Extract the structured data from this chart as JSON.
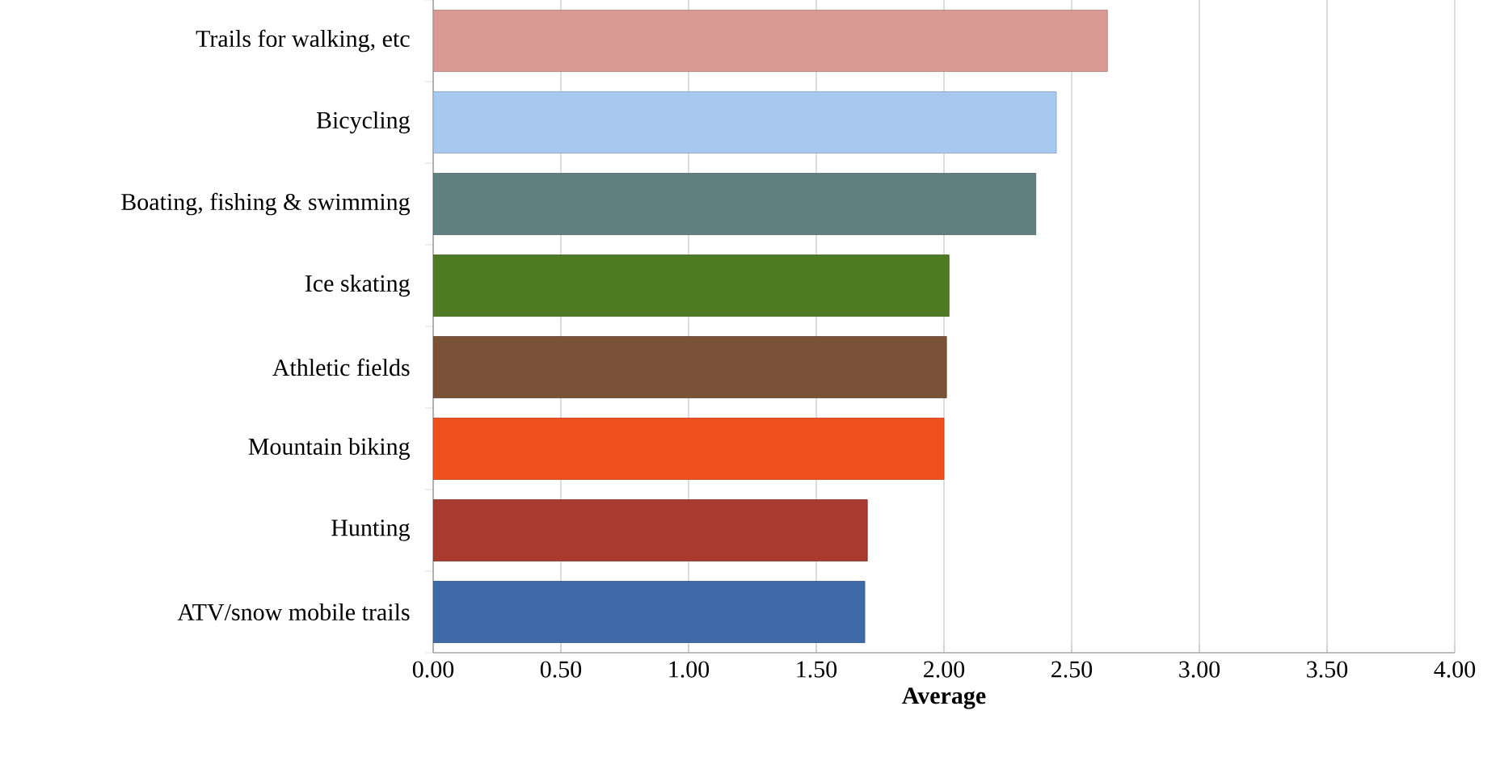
{
  "chart_data": {
    "type": "bar",
    "orientation": "horizontal",
    "xlabel": "Average",
    "categories": [
      "Trails for walking, etc",
      "Bicycling",
      "Boating, fishing & swimming",
      "Ice skating",
      "Athletic fields",
      "Mountain biking",
      "Hunting",
      "ATV/snow mobile trails"
    ],
    "values": [
      2.64,
      2.44,
      2.36,
      2.02,
      2.01,
      2.0,
      1.7,
      1.69
    ],
    "colors": [
      "#d99a94",
      "#a7c8ef",
      "#5f7f80",
      "#4e7a24",
      "#7b5238",
      "#f0501c",
      "#a83a30",
      "#3e6ba8"
    ],
    "xlim": [
      0,
      4
    ],
    "xticks": [
      {
        "value": 0,
        "label": "0.00"
      },
      {
        "value": 0.5,
        "label": "0.50"
      },
      {
        "value": 1,
        "label": "1.00"
      },
      {
        "value": 1.5,
        "label": "1.50"
      },
      {
        "value": 2,
        "label": "2.00"
      },
      {
        "value": 2.5,
        "label": "2.50"
      },
      {
        "value": 3,
        "label": "3.00"
      },
      {
        "value": 3.5,
        "label": "3.50"
      },
      {
        "value": 4,
        "label": "4.00"
      }
    ],
    "grid": "x"
  }
}
